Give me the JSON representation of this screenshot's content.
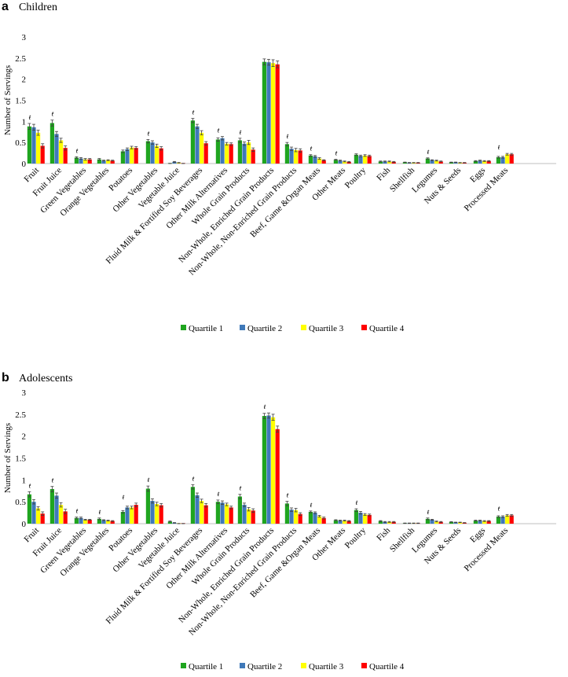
{
  "figure": {
    "series_names": [
      "Quartile 1",
      "Quartile 2",
      "Quartile 3",
      "Quartile 4"
    ],
    "colors": [
      "#1fa51f",
      "#3f79b9",
      "#ffff00",
      "#ff0000"
    ],
    "dagger_symbol": "ŧ"
  },
  "chart_data": [
    {
      "type": "bar",
      "panel_label": "a",
      "title": "Children",
      "ylabel": "Number of Servings",
      "ylim": [
        0,
        3
      ],
      "yticks": [
        "0",
        "0.5",
        "1",
        "1.5",
        "2",
        "2.5",
        "3"
      ],
      "legend_position": "bottom",
      "categories": [
        "Fruit",
        "Fruit Juice",
        "Green Vegetables",
        "Orange Vegetables",
        "Potatoes",
        "Other Vegetables",
        "Vegetable Juice",
        "Fluid Milk & Fortified Soy Beverages",
        "Other Milk Alternatives",
        "Whole Grain Products",
        "Non-Whole, Enriched Grain Products",
        "Non-Whole, Non-Enriched Grain Products",
        "Beef, Game &Organ Meats",
        "Other Meats",
        "Poultry",
        "Fish",
        "Shellfish",
        "Legumes",
        "Nuts & Seeds",
        "Eggs",
        "Processed Meats"
      ],
      "significant": [
        true,
        true,
        true,
        false,
        false,
        true,
        false,
        true,
        true,
        true,
        false,
        true,
        true,
        true,
        false,
        false,
        false,
        true,
        false,
        false,
        true
      ],
      "series": [
        {
          "name": "Quartile 1",
          "values": [
            0.88,
            0.96,
            0.14,
            0.1,
            0.29,
            0.53,
            0.0,
            1.02,
            0.57,
            0.55,
            2.41,
            0.46,
            0.19,
            0.09,
            0.21,
            0.05,
            0.03,
            0.12,
            0.03,
            0.06,
            0.15
          ],
          "errors": [
            0.07,
            0.07,
            0.02,
            0.02,
            0.03,
            0.04,
            0.005,
            0.05,
            0.04,
            0.05,
            0.07,
            0.04,
            0.02,
            0.01,
            0.02,
            0.01,
            0.005,
            0.015,
            0.005,
            0.01,
            0.02
          ]
        },
        {
          "name": "Quartile 2",
          "values": [
            0.86,
            0.7,
            0.12,
            0.07,
            0.34,
            0.5,
            0.04,
            0.88,
            0.6,
            0.47,
            2.4,
            0.35,
            0.17,
            0.07,
            0.18,
            0.05,
            0.02,
            0.08,
            0.03,
            0.07,
            0.15
          ],
          "errors": [
            0.07,
            0.06,
            0.02,
            0.01,
            0.03,
            0.04,
            0.01,
            0.05,
            0.04,
            0.04,
            0.07,
            0.04,
            0.02,
            0.01,
            0.02,
            0.01,
            0.005,
            0.01,
            0.005,
            0.01,
            0.02
          ]
        },
        {
          "name": "Quartile 3",
          "values": [
            0.73,
            0.55,
            0.1,
            0.08,
            0.38,
            0.42,
            0.02,
            0.73,
            0.47,
            0.5,
            2.38,
            0.32,
            0.12,
            0.05,
            0.19,
            0.05,
            0.02,
            0.07,
            0.02,
            0.06,
            0.22
          ],
          "errors": [
            0.06,
            0.05,
            0.02,
            0.01,
            0.03,
            0.04,
            0.005,
            0.05,
            0.03,
            0.05,
            0.08,
            0.04,
            0.02,
            0.01,
            0.02,
            0.01,
            0.005,
            0.01,
            0.005,
            0.01,
            0.02
          ]
        },
        {
          "name": "Quartile 4",
          "values": [
            0.42,
            0.37,
            0.1,
            0.07,
            0.37,
            0.36,
            0.0,
            0.48,
            0.46,
            0.33,
            2.35,
            0.31,
            0.08,
            0.04,
            0.18,
            0.04,
            0.02,
            0.05,
            0.02,
            0.06,
            0.22
          ],
          "errors": [
            0.05,
            0.05,
            0.02,
            0.01,
            0.03,
            0.04,
            0.005,
            0.04,
            0.03,
            0.04,
            0.08,
            0.04,
            0.01,
            0.01,
            0.02,
            0.01,
            0.005,
            0.01,
            0.005,
            0.01,
            0.02
          ]
        }
      ]
    },
    {
      "type": "bar",
      "panel_label": "b",
      "title": "Adolescents",
      "ylabel": "Number of Servings",
      "ylim": [
        0,
        3
      ],
      "yticks": [
        "0",
        "0.5",
        "1",
        "1.5",
        "2",
        "2.5",
        "3"
      ],
      "legend_position": "bottom",
      "categories": [
        "Fruit",
        "Fruit Juice",
        "Green Vegetables",
        "Orange Vegetables",
        "Potatoes",
        "Other Vegetables",
        "Vegetable Juice",
        "Fluid Milk & Fortified Soy Beverages",
        "Other Milk Alternatives",
        "Whole Grain Products",
        "Non-Whole, Enriched Grain Products",
        "Non-Whole, Non-Enriched Grain Products",
        "Beef, Game &Organ Meats",
        "Other Meats",
        "Poultry",
        "Fish",
        "Shellfish",
        "Legumes",
        "Nuts & Seeds",
        "Eggs",
        "Processed Meats"
      ],
      "significant": [
        true,
        true,
        true,
        true,
        true,
        true,
        false,
        true,
        true,
        true,
        true,
        true,
        true,
        false,
        true,
        false,
        false,
        true,
        false,
        false,
        true
      ],
      "series": [
        {
          "name": "Quartile 1",
          "values": [
            0.67,
            0.79,
            0.13,
            0.11,
            0.27,
            0.8,
            0.05,
            0.84,
            0.5,
            0.62,
            2.46,
            0.46,
            0.27,
            0.08,
            0.31,
            0.06,
            0.01,
            0.11,
            0.04,
            0.07,
            0.16
          ],
          "errors": [
            0.06,
            0.06,
            0.02,
            0.02,
            0.03,
            0.06,
            0.01,
            0.05,
            0.04,
            0.05,
            0.06,
            0.05,
            0.02,
            0.01,
            0.03,
            0.01,
            0.005,
            0.02,
            0.005,
            0.01,
            0.02
          ]
        },
        {
          "name": "Quartile 2",
          "values": [
            0.5,
            0.64,
            0.13,
            0.08,
            0.37,
            0.52,
            0.02,
            0.65,
            0.48,
            0.43,
            2.47,
            0.32,
            0.25,
            0.07,
            0.25,
            0.04,
            0.01,
            0.09,
            0.03,
            0.07,
            0.16
          ],
          "errors": [
            0.05,
            0.06,
            0.02,
            0.01,
            0.03,
            0.05,
            0.005,
            0.05,
            0.04,
            0.04,
            0.06,
            0.04,
            0.02,
            0.01,
            0.03,
            0.01,
            0.005,
            0.01,
            0.005,
            0.01,
            0.02
          ]
        },
        {
          "name": "Quartile 3",
          "values": [
            0.35,
            0.43,
            0.09,
            0.07,
            0.37,
            0.45,
            0.0,
            0.52,
            0.44,
            0.33,
            2.43,
            0.31,
            0.17,
            0.07,
            0.21,
            0.04,
            0.01,
            0.05,
            0.03,
            0.06,
            0.19
          ],
          "errors": [
            0.04,
            0.05,
            0.01,
            0.01,
            0.03,
            0.04,
            0.005,
            0.04,
            0.03,
            0.04,
            0.07,
            0.04,
            0.02,
            0.01,
            0.02,
            0.01,
            0.005,
            0.01,
            0.005,
            0.01,
            0.02
          ]
        },
        {
          "name": "Quartile 4",
          "values": [
            0.23,
            0.28,
            0.09,
            0.06,
            0.43,
            0.42,
            0.0,
            0.42,
            0.37,
            0.3,
            2.16,
            0.22,
            0.13,
            0.06,
            0.2,
            0.04,
            0.01,
            0.04,
            0.02,
            0.06,
            0.19
          ],
          "errors": [
            0.04,
            0.05,
            0.01,
            0.01,
            0.04,
            0.04,
            0.005,
            0.04,
            0.03,
            0.04,
            0.07,
            0.03,
            0.02,
            0.01,
            0.02,
            0.01,
            0.005,
            0.01,
            0.005,
            0.01,
            0.02
          ]
        }
      ]
    }
  ]
}
